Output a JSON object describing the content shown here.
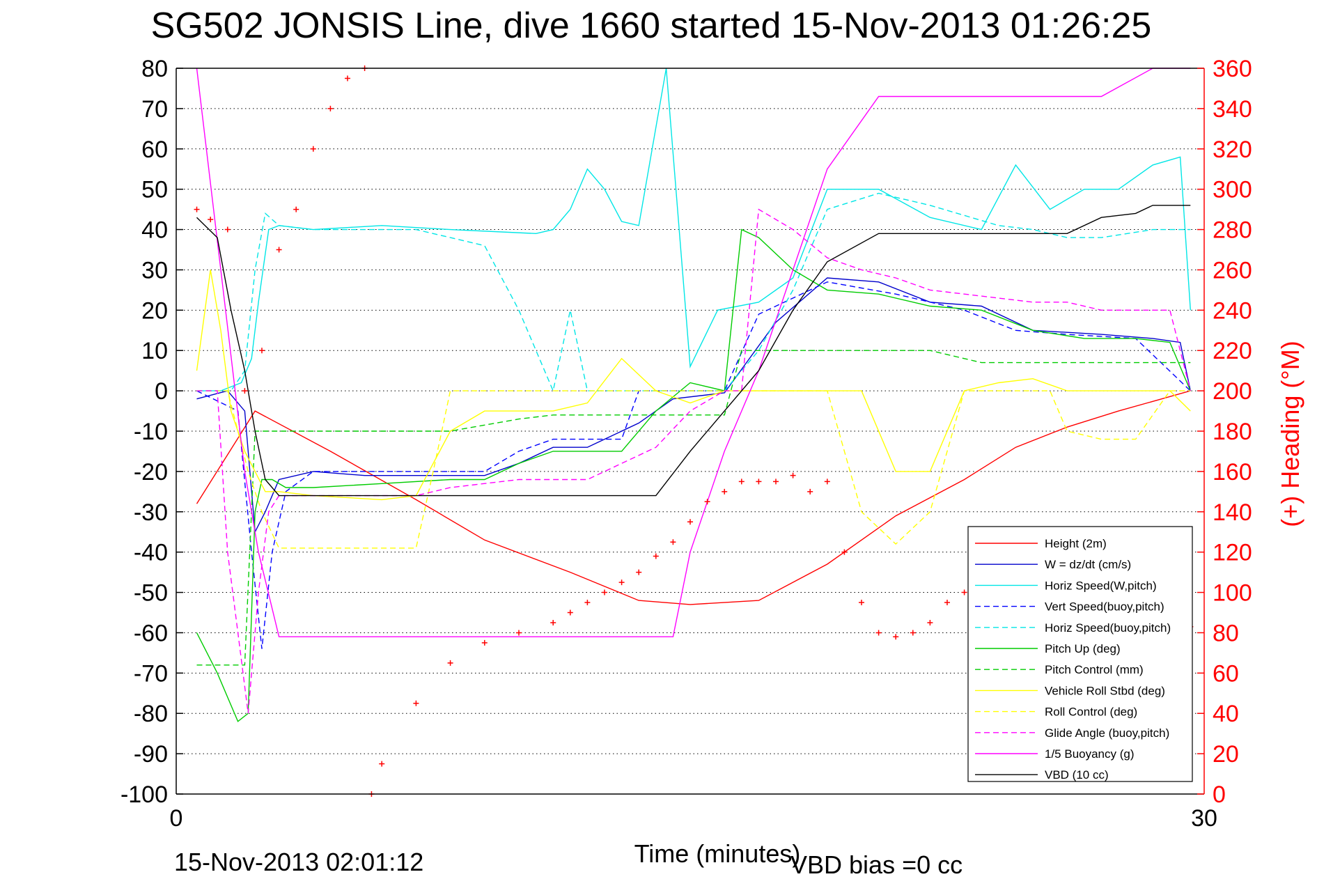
{
  "chart_data": {
    "type": "line",
    "title": "SG502 JONSIS Line, dive 1660 started 15-Nov-2013 01:26:25",
    "xlabel": "Time (minutes)",
    "ylabel_right": "(+) Heading (°M)",
    "footer_left": "15-Nov-2013 02:01:12",
    "footer_right": "VBD bias =0 cc",
    "xlim": [
      0,
      30
    ],
    "ylim_left": [
      -100,
      80
    ],
    "ylim_right": [
      0,
      360
    ],
    "x_ticks": [
      "0",
      "30"
    ],
    "y_ticks_left": [
      "80",
      "70",
      "60",
      "50",
      "40",
      "30",
      "20",
      "10",
      "0",
      "-10",
      "-20",
      "-30",
      "-40",
      "-50",
      "-60",
      "-70",
      "-80",
      "-90",
      "-100"
    ],
    "y_ticks_right": [
      "360",
      "340",
      "320",
      "300",
      "280",
      "260",
      "240",
      "220",
      "200",
      "180",
      "160",
      "140",
      "120",
      "100",
      "80",
      "60",
      "40",
      "20",
      "0"
    ],
    "grid": true,
    "legend_position": "bottom-right",
    "colors": {
      "axis_right": "#ff0000"
    },
    "series": [
      {
        "name": "Height (2m)",
        "color": "#ff0000",
        "style": "solid",
        "x": [
          0.6,
          2.3,
          4.5,
          7,
          9,
          11.5,
          13.5,
          15,
          17,
          19,
          21,
          23,
          24.5,
          26,
          27.5,
          29.6
        ],
        "y": [
          -28,
          -5,
          -15,
          -27,
          -37,
          -45,
          -52,
          -53,
          -52,
          -43,
          -31,
          -22,
          -14,
          -9,
          -5,
          0
        ]
      },
      {
        "name": "W = dz/dt (cm/s)",
        "color": "#0000cc",
        "style": "solid",
        "x": [
          0.6,
          1.5,
          2.0,
          2.3,
          2.6,
          3.0,
          4.0,
          5.5,
          7,
          9,
          10,
          11,
          12,
          13.5,
          14.5,
          16,
          17.5,
          19,
          20.5,
          22,
          23.5,
          25,
          27,
          28.5,
          29.3,
          29.6
        ],
        "y": [
          -2,
          0,
          -5,
          -35,
          -30,
          -22,
          -20,
          -21,
          -21,
          -21,
          -18,
          -14,
          -14,
          -8,
          -2,
          -0.5,
          17,
          28,
          27,
          22,
          21,
          15,
          14,
          13,
          12,
          0
        ]
      },
      {
        "name": "Horiz Speed(W,pitch)",
        "color": "#00e6e6",
        "style": "solid",
        "x": [
          0.6,
          1.3,
          1.9,
          2.2,
          2.4,
          2.7,
          3.0,
          4,
          6,
          8,
          10.5,
          11,
          11.5,
          12,
          12.5,
          13,
          13.5,
          14.3,
          15,
          15.8,
          17,
          18,
          19,
          20.5,
          22,
          23.5,
          24.5,
          25.5,
          26.5,
          27.5,
          28.5,
          29.3,
          29.6
        ],
        "y": [
          0,
          0,
          2,
          8,
          22,
          40,
          41,
          40,
          41,
          40,
          39,
          40,
          45,
          55,
          50,
          42,
          41,
          80,
          6,
          20,
          22,
          28,
          50,
          50,
          43,
          40,
          56,
          45,
          50,
          50,
          56,
          58,
          20
        ]
      },
      {
        "name": "Vert Speed(buoy,pitch)",
        "color": "#0000ff",
        "style": "dashed",
        "x": [
          0.6,
          1.8,
          2.2,
          2.5,
          2.8,
          3.2,
          4,
          7,
          9,
          10,
          11,
          13,
          13.5,
          16,
          17,
          19,
          21,
          23,
          24.5,
          26,
          28,
          29.6
        ],
        "y": [
          0,
          -5,
          -40,
          -64,
          -40,
          -25,
          -20,
          -20,
          -20,
          -15,
          -12,
          -12,
          0,
          0,
          19,
          27,
          24,
          20,
          15,
          14,
          13,
          0
        ]
      },
      {
        "name": "Horiz Speed(buoy,pitch)",
        "color": "#00e6e6",
        "style": "dashed",
        "x": [
          0.6,
          1.6,
          2.0,
          2.3,
          2.6,
          3.0,
          4,
          7,
          8,
          9,
          10,
          11,
          11.5,
          12,
          13,
          13.5,
          16,
          17,
          18,
          19,
          20.5,
          22,
          24,
          25,
          26,
          27,
          28.5,
          29.6
        ],
        "y": [
          0,
          0,
          5,
          30,
          44,
          41,
          40,
          40,
          38,
          36,
          20,
          0,
          20,
          0,
          0,
          0,
          0,
          10,
          25,
          45,
          49,
          46,
          41,
          40,
          38,
          38,
          40,
          40
        ]
      },
      {
        "name": "Pitch Up (deg)",
        "color": "#00cc00",
        "style": "solid",
        "x": [
          0.6,
          1.2,
          1.8,
          2.1,
          2.3,
          2.5,
          2.8,
          3.2,
          4,
          6,
          8,
          9,
          10,
          11,
          12,
          13,
          14,
          15,
          16,
          16.5,
          17,
          18,
          19,
          20.5,
          22,
          23.5,
          25,
          26.5,
          28,
          29,
          29.6
        ],
        "y": [
          -60,
          -70,
          -82,
          -80,
          -30,
          -22,
          -22,
          -24,
          -24,
          -23,
          -22,
          -22,
          -18,
          -15,
          -15,
          -15,
          -5,
          2,
          0,
          40,
          38,
          30,
          25,
          24,
          21,
          20,
          15,
          13,
          13,
          12,
          0
        ]
      },
      {
        "name": "Pitch Control (mm)",
        "color": "#00cc00",
        "style": "dashed",
        "x": [
          0.6,
          1.6,
          2.0,
          2.3,
          4,
          7,
          8,
          10,
          11,
          13,
          15,
          16,
          16.5,
          17,
          22,
          23.5,
          29.6
        ],
        "y": [
          -68,
          -68,
          -68,
          -10,
          -10,
          -10,
          -10,
          -7,
          -6,
          -6,
          -6,
          -6,
          10,
          10,
          10,
          7,
          7
        ]
      },
      {
        "name": "Vehicle Roll Stbd (deg)",
        "color": "#ffff00",
        "style": "solid",
        "x": [
          0.6,
          1.0,
          1.3,
          1.6,
          2.0,
          2.3,
          2.6,
          3.0,
          4,
          6,
          7,
          8,
          9,
          10,
          11,
          12,
          13,
          14,
          15,
          16,
          17,
          18,
          19,
          20,
          21,
          22,
          23,
          24,
          25,
          26,
          27,
          28,
          29,
          29.6
        ],
        "y": [
          5,
          30,
          15,
          -5,
          -15,
          -20,
          -25,
          -25,
          -26,
          -27,
          -26,
          -10,
          -5,
          -5,
          -5,
          -3,
          8,
          0,
          -3,
          0,
          0,
          0,
          0,
          0,
          -20,
          -20,
          0,
          2,
          3,
          0,
          0,
          0,
          0,
          -5
        ]
      },
      {
        "name": "Roll Control (deg)",
        "color": "#ffff00",
        "style": "dashed",
        "x": [
          0.6,
          1.5,
          1.8,
          2.1,
          2.5,
          3.0,
          4,
          6,
          7,
          7.5,
          8,
          10,
          12,
          14,
          16,
          18,
          19,
          20,
          21,
          22,
          23,
          24,
          25,
          25.5,
          26,
          27,
          28,
          29,
          29.6
        ],
        "y": [
          0,
          0,
          -10,
          -20,
          -30,
          -39,
          -39,
          -39,
          -39,
          -20,
          0,
          0,
          0,
          0,
          0,
          0,
          0,
          -30,
          -38,
          -30,
          0,
          0,
          0,
          0,
          -10,
          -12,
          -12,
          0,
          0
        ]
      },
      {
        "name": "Glide Angle (buoy,pitch)",
        "color": "#ff00ff",
        "style": "dashed",
        "x": [
          0.6,
          1.2,
          1.5,
          1.8,
          2.1,
          2.4,
          2.7,
          3.0,
          4,
          7,
          8,
          10,
          12,
          13,
          14,
          15,
          16,
          16.5,
          17,
          18,
          19,
          20,
          21,
          22,
          23,
          24,
          25,
          26,
          27,
          28,
          29,
          29.6
        ],
        "y": [
          0,
          0,
          -40,
          -60,
          -80,
          -50,
          -30,
          -26,
          -26,
          -26,
          -24,
          -22,
          -22,
          -18,
          -14,
          -5,
          0,
          0,
          45,
          40,
          33,
          30,
          28,
          25,
          24,
          23,
          22,
          22,
          20,
          20,
          20,
          0
        ]
      },
      {
        "name": "1/5 Buoyancy (g)",
        "color": "#ff00ff",
        "style": "solid",
        "x": [
          0.6,
          1.3,
          2.0,
          2.4,
          3.0,
          4,
          7,
          10,
          12,
          13.5,
          14.5,
          15,
          16,
          16.5,
          17,
          18,
          19,
          20.5,
          21.5,
          23,
          24,
          25,
          26,
          27,
          28.5,
          29.6
        ],
        "y": [
          80,
          30,
          -20,
          -40,
          -61,
          -61,
          -61,
          -61,
          -61,
          -61,
          -61,
          -40,
          -15,
          -5,
          5,
          30,
          55,
          73,
          73,
          73,
          73,
          73,
          73,
          73,
          80,
          80
        ]
      },
      {
        "name": "VBD (10 cc)",
        "color": "#000000",
        "style": "solid",
        "x": [
          0.6,
          1.2,
          1.6,
          2.0,
          2.3,
          2.6,
          3.0,
          4,
          6,
          8,
          10,
          12,
          13.5,
          14,
          15,
          16,
          17,
          18,
          19,
          20.5,
          22,
          24,
          25,
          26,
          27,
          28,
          28.5,
          29.6
        ],
        "y": [
          43,
          38,
          20,
          5,
          -10,
          -22,
          -26,
          -26,
          -26,
          -26,
          -26,
          -26,
          -26,
          -26,
          -15,
          -5,
          5,
          20,
          32,
          39,
          39,
          39,
          39,
          39,
          43,
          44,
          46,
          46
        ]
      },
      {
        "name": "Heading (+)",
        "color": "#ff0000",
        "style": "markers",
        "x": [
          0.6,
          1.0,
          1.5,
          2.0,
          2.5,
          3.0,
          3.5,
          4,
          4.5,
          5,
          5.5,
          5.7,
          6,
          7,
          8,
          9,
          10,
          11,
          11.5,
          12,
          12.5,
          13,
          13.5,
          14,
          14.5,
          15,
          15.5,
          16,
          16.5,
          17,
          17.5,
          18,
          18.5,
          19,
          19.5,
          20,
          20.5,
          21,
          21.5,
          22,
          22.5,
          23,
          23.5,
          24,
          24.5,
          25,
          25.5,
          26,
          26.5,
          27,
          27.5,
          28,
          28.5,
          29,
          29.3,
          29.6
        ],
        "y": [
          290,
          285,
          280,
          200,
          220,
          270,
          290,
          320,
          340,
          355,
          360,
          0,
          15,
          45,
          65,
          75,
          80,
          85,
          90,
          95,
          100,
          105,
          110,
          118,
          125,
          135,
          145,
          150,
          155,
          155,
          155,
          158,
          150,
          155,
          120,
          95,
          80,
          78,
          80,
          85,
          95,
          100,
          105,
          108,
          110,
          105,
          95,
          85,
          82,
          80,
          82,
          85,
          88,
          85,
          82,
          83
        ]
      }
    ]
  }
}
